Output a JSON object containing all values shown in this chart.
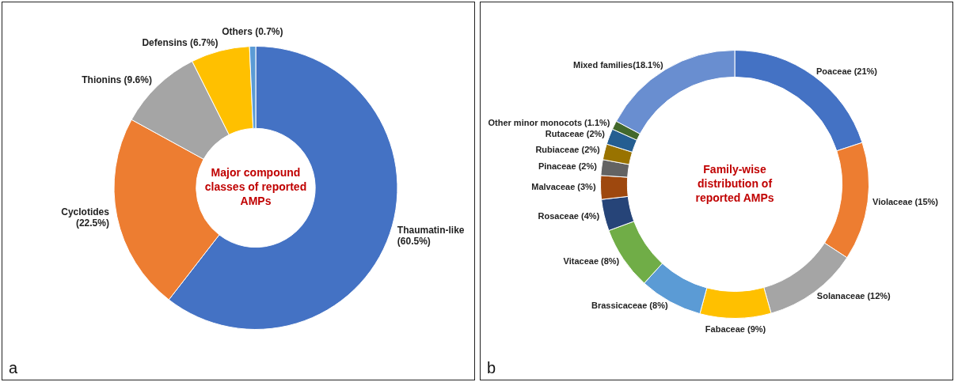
{
  "chart_data": [
    {
      "type": "donut",
      "title": "Major compound classes of reported AMPs",
      "categories": [
        "Thaumatin-like (60.5%)",
        "Cyclotides (22.5%)",
        "Thionins (9.6%)",
        "Defensins (6.7%)",
        "Others (0.7%)"
      ],
      "values": [
        60.5,
        22.5,
        9.6,
        6.7,
        0.7
      ],
      "colors": [
        "#4472c4",
        "#ed7d31",
        "#a5a5a5",
        "#ffc000",
        "#5b9bd5"
      ],
      "annotations": [
        "a"
      ]
    },
    {
      "type": "donut",
      "title": "Family-wise distribution of reported AMPs",
      "categories": [
        "Poaceae (21%)",
        "Violaceae (15%)",
        "Solanaceae (12%)",
        "Fabaceae (9%)",
        "Brassicaceae (8%)",
        "Vitaceae (8%)",
        "Rosaceae (4%)",
        "Malvaceae (3%)",
        "Pinaceae (2%)",
        "Rubiaceae (2%)",
        "Rutaceae (2%)",
        "Other minor monocots (1.1%)",
        "Mixed families(18.1%)"
      ],
      "values": [
        21,
        15,
        12,
        9,
        8,
        8,
        4,
        3,
        2,
        2,
        2,
        1.1,
        18.1
      ],
      "colors": [
        "#4472c4",
        "#ed7d31",
        "#a5a5a5",
        "#ffc000",
        "#5b9bd5",
        "#70ad47",
        "#264478",
        "#9e480e",
        "#636363",
        "#997300",
        "#255e91",
        "#43682b",
        "#698ed0"
      ],
      "annotations": [
        "b"
      ]
    }
  ]
}
